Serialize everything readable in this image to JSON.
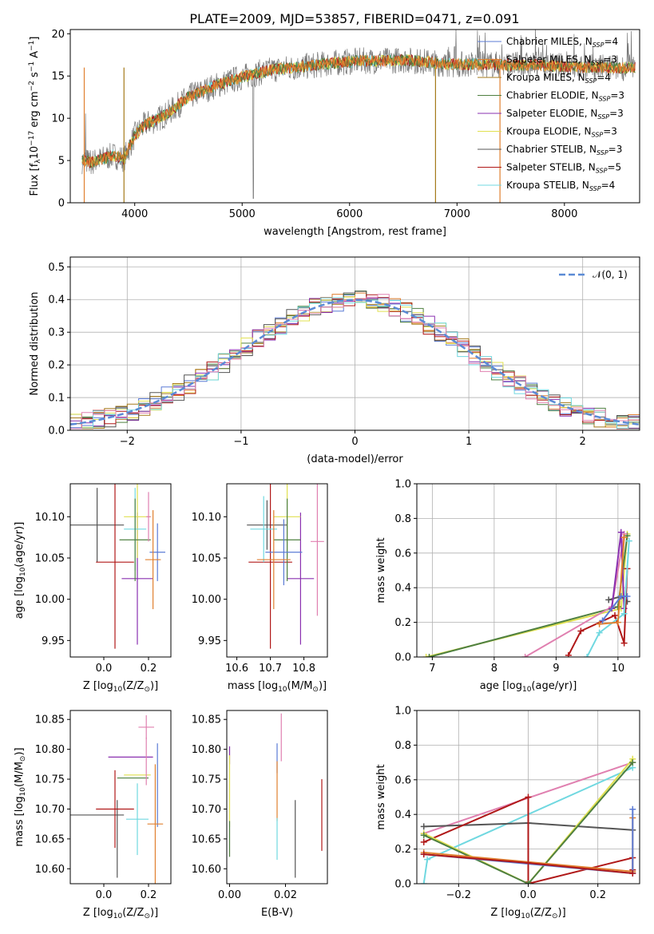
{
  "colors": {
    "Chabrier MILES": "#5b7bd5",
    "Salpeter MILES": "#e08030",
    "Kroupa MILES": "#a57a1a",
    "Chabrier ELODIE": "#4f8040",
    "Salpeter ELODIE": "#8a30b0",
    "Kroupa ELODIE": "#e0e050",
    "Chabrier STELIB": "#555555",
    "Salpeter STELIB": "#b01818",
    "Kroupa STELIB": "#70d8e0",
    "Pink": "#e080b0"
  },
  "chart_data": [
    {
      "id": "spectrum",
      "type": "line",
      "title": "PLATE=2009, MJD=53857, FIBERID=0471, z=0.091",
      "xlabel": "wavelength [Angstrom, rest frame]",
      "ylabel": "Flux [f",
      "ylabel_sub": "λ",
      "ylabel_rest": "10",
      "ylabel_sup": "−17",
      "ylabel_tail": " erg cm",
      "ylabel_sup2": "−2",
      "ylabel_tail2": " s",
      "ylabel_sup3": "−1",
      "ylabel_tail3": " A",
      "ylabel_sup4": "−1",
      "ylabel_end": "]",
      "xlim": [
        3400,
        8700
      ],
      "ylim": [
        0,
        20.5
      ],
      "xticks": [
        "4000",
        "5000",
        "6000",
        "7000",
        "8000"
      ],
      "xtick_values": [
        4000,
        5000,
        6000,
        7000,
        8000
      ],
      "yticks": [
        "0",
        "5",
        "10",
        "15",
        "20"
      ],
      "ytick_values": [
        0,
        5,
        10,
        15,
        20
      ],
      "grid": false,
      "legend_position": "top-right",
      "legend": [
        {
          "pre": "Chabrier MILES, N",
          "sub": "SSP",
          "post": "=4",
          "color": "Chabrier MILES"
        },
        {
          "pre": "Salpeter MILES, N",
          "sub": "SSP",
          "post": "=3",
          "color": "Salpeter MILES"
        },
        {
          "pre": "Kroupa MILES, N",
          "sub": "SSP",
          "post": "=4",
          "color": "Kroupa MILES"
        },
        {
          "pre": "Chabrier ELODIE, N",
          "sub": "SSP",
          "post": "=3",
          "color": "Chabrier ELODIE"
        },
        {
          "pre": "Salpeter ELODIE, N",
          "sub": "SSP",
          "post": "=3",
          "color": "Salpeter ELODIE"
        },
        {
          "pre": "Kroupa ELODIE, N",
          "sub": "SSP",
          "post": "=3",
          "color": "Kroupa ELODIE"
        },
        {
          "pre": "Chabrier STELIB, N",
          "sub": "SSP",
          "post": "=3",
          "color": "Chabrier STELIB"
        },
        {
          "pre": "Salpeter STELIB, N",
          "sub": "SSP",
          "post": "=5",
          "color": "Salpeter STELIB"
        },
        {
          "pre": "Kroupa STELIB, N",
          "sub": "SSP",
          "post": "=4",
          "color": "Kroupa STELIB"
        }
      ],
      "continuum": {
        "x": [
          3500,
          3600,
          3700,
          3800,
          3900,
          4000,
          4100,
          4200,
          4300,
          4400,
          4500,
          4700,
          4900,
          5100,
          5300,
          5500,
          5700,
          5900,
          6100,
          6300,
          6500,
          6700,
          6900,
          7100,
          7300,
          7500,
          7700,
          7900,
          8100,
          8300,
          8500
        ],
        "y": [
          5,
          4.8,
          5.2,
          5.6,
          5.2,
          8,
          9.3,
          9.8,
          10.5,
          11.5,
          12.5,
          13.6,
          14.5,
          15.2,
          15.8,
          16.0,
          16.3,
          16.6,
          16.8,
          16.8,
          16.9,
          16.7,
          16.4,
          16.4,
          16.4,
          16.3,
          16.3,
          16.2,
          16.1,
          16.0,
          16.0
        ]
      }
    },
    {
      "id": "residuals",
      "type": "histogram",
      "xlabel": "(data-model)/error",
      "ylabel": "Normed distribution",
      "xlim": [
        -2.5,
        2.5
      ],
      "ylim": [
        0,
        0.53
      ],
      "xticks": [
        "−2",
        "−1",
        "0",
        "1",
        "2"
      ],
      "xtick_values": [
        -2,
        -1,
        0,
        1,
        2
      ],
      "yticks": [
        "0.0",
        "0.1",
        "0.2",
        "0.3",
        "0.4",
        "0.5"
      ],
      "ytick_values": [
        0,
        0.1,
        0.2,
        0.3,
        0.4,
        0.5
      ],
      "grid": true,
      "legend_position": "top-right",
      "legend_label": "𝒩(0, 1)",
      "bin_edges_start": -2.5,
      "bin_width": 0.1
    },
    {
      "id": "age-vs-Z",
      "type": "errorbar",
      "xlabel_pre": "Z [log",
      "xlabel_sub": "10",
      "xlabel_post": "(Z/Z",
      "xlabel_sub2": "⊙",
      "xlabel_end": ")]",
      "ylabel_pre": "age  [log",
      "ylabel_sub": "10",
      "ylabel_post": "(age/yr)]",
      "xlim": [
        -0.15,
        0.3
      ],
      "ylim": [
        9.93,
        10.14
      ],
      "xticks": [
        "0.0",
        "0.2"
      ],
      "xtick_values": [
        0.0,
        0.2
      ],
      "yticks": [
        "9.95",
        "10.00",
        "10.05",
        "10.10"
      ],
      "ytick_values": [
        9.95,
        10.0,
        10.05,
        10.1
      ],
      "points": [
        {
          "x": -0.03,
          "y": 10.09,
          "xerr": 0.12,
          "yerr": 0.045,
          "c": "Chabrier STELIB"
        },
        {
          "x": 0.05,
          "y": 10.045,
          "xerr": 0.085,
          "yerr": 0.105,
          "c": "Salpeter STELIB"
        },
        {
          "x": 0.15,
          "y": 10.025,
          "xerr": 0.07,
          "yerr": 0.08,
          "c": "Salpeter ELODIE"
        },
        {
          "x": 0.15,
          "y": 10.1,
          "xerr": 0.06,
          "yerr": 0.05,
          "c": "Kroupa ELODIE"
        },
        {
          "x": 0.14,
          "y": 10.085,
          "xerr": 0.05,
          "yerr": 0.05,
          "c": "Kroupa STELIB"
        },
        {
          "x": 0.14,
          "y": 10.072,
          "xerr": 0.07,
          "yerr": 0.05,
          "c": "Chabrier ELODIE"
        },
        {
          "x": 0.24,
          "y": 10.057,
          "xerr": 0.035,
          "yerr": 0.035,
          "c": "Chabrier MILES"
        },
        {
          "x": 0.22,
          "y": 10.048,
          "xerr": 0.035,
          "yerr": 0.06,
          "c": "Salpeter MILES"
        },
        {
          "x": 0.2,
          "y": 10.1,
          "xerr": 0.01,
          "yerr": 0.03,
          "c": "Pink"
        }
      ]
    },
    {
      "id": "age-vs-mass",
      "type": "errorbar",
      "xlabel_pre": "mass [log",
      "xlabel_sub": "10",
      "xlabel_post": "(M/M",
      "xlabel_sub2": "⊙",
      "xlabel_end": ")]",
      "xlim": [
        10.57,
        10.87
      ],
      "ylim": [
        9.93,
        10.14
      ],
      "xticks": [
        "10.6",
        "10.7",
        "10.8"
      ],
      "xtick_values": [
        10.6,
        10.7,
        10.8
      ],
      "yticks": [
        "9.95",
        "10.00",
        "10.05",
        "10.10"
      ],
      "ytick_values": [
        9.95,
        10.0,
        10.05,
        10.1
      ],
      "points": [
        {
          "x": 10.69,
          "y": 10.09,
          "xerr": 0.06,
          "yerr": 0.03,
          "c": "Chabrier STELIB"
        },
        {
          "x": 10.7,
          "y": 10.045,
          "xerr": 0.065,
          "yerr": 0.105,
          "c": "Salpeter STELIB"
        },
        {
          "x": 10.79,
          "y": 10.025,
          "xerr": 0.04,
          "yerr": 0.08,
          "c": "Salpeter ELODIE"
        },
        {
          "x": 10.75,
          "y": 10.1,
          "xerr": 0.04,
          "yerr": 0.05,
          "c": "Kroupa ELODIE"
        },
        {
          "x": 10.68,
          "y": 10.085,
          "xerr": 0.04,
          "yerr": 0.04,
          "c": "Kroupa STELIB"
        },
        {
          "x": 10.75,
          "y": 10.072,
          "xerr": 0.04,
          "yerr": 0.05,
          "c": "Chabrier ELODIE"
        },
        {
          "x": 10.74,
          "y": 10.057,
          "xerr": 0.055,
          "yerr": 0.04,
          "c": "Chabrier MILES"
        },
        {
          "x": 10.71,
          "y": 10.048,
          "xerr": 0.05,
          "yerr": 0.06,
          "c": "Salpeter MILES"
        },
        {
          "x": 10.84,
          "y": 10.07,
          "xerr": 0.02,
          "yerr": 0.09,
          "c": "Pink"
        }
      ]
    },
    {
      "id": "mass-weight-vs-age",
      "type": "line",
      "xlabel_pre": "age  [log",
      "xlabel_sub": "10",
      "xlabel_post": "(age/yr)]",
      "ylabel": "mass weight",
      "xlim": [
        6.75,
        10.35
      ],
      "ylim": [
        0,
        1.0
      ],
      "xticks": [
        "7",
        "8",
        "9",
        "10"
      ],
      "xtick_values": [
        7,
        8,
        9,
        10
      ],
      "yticks": [
        "0.0",
        "0.2",
        "0.4",
        "0.6",
        "0.8",
        "1.0"
      ],
      "ytick_values": [
        0,
        0.2,
        0.4,
        0.6,
        0.8,
        1.0
      ],
      "grid": true,
      "series": [
        {
          "c": "Kroupa ELODIE",
          "x": [
            6.9,
            10.05,
            10.15
          ],
          "y": [
            0.0,
            0.28,
            0.71
          ]
        },
        {
          "c": "Chabrier ELODIE",
          "x": [
            6.95,
            10.0,
            10.15
          ],
          "y": [
            0.0,
            0.29,
            0.7
          ]
        },
        {
          "c": "Pink",
          "x": [
            8.5,
            9.9,
            10.1
          ],
          "y": [
            0.0,
            0.29,
            0.71
          ]
        },
        {
          "c": "Chabrier STELIB",
          "x": [
            9.85,
            10.05,
            10.15
          ],
          "y": [
            0.33,
            0.35,
            0.32
          ]
        },
        {
          "c": "Salpeter ELODIE",
          "x": [
            9.9,
            10.05,
            10.1
          ],
          "y": [
            0.28,
            0.72,
            0.28
          ]
        },
        {
          "c": "Salpeter STELIB",
          "x": [
            9.2,
            9.4,
            9.95,
            10.1,
            10.15
          ],
          "y": [
            0.01,
            0.15,
            0.24,
            0.08,
            0.51
          ]
        },
        {
          "c": "Kroupa STELIB",
          "x": [
            9.5,
            9.7,
            10.1,
            10.18
          ],
          "y": [
            0.0,
            0.14,
            0.25,
            0.67
          ]
        },
        {
          "c": "Salpeter MILES",
          "x": [
            9.7,
            10.0,
            10.1
          ],
          "y": [
            0.19,
            0.2,
            0.69
          ]
        },
        {
          "c": "Chabrier MILES",
          "x": [
            9.75,
            10.05,
            10.15
          ],
          "y": [
            0.21,
            0.35,
            0.35
          ]
        }
      ]
    },
    {
      "id": "mass-vs-Z",
      "type": "errorbar",
      "xlabel_pre": "Z [log",
      "xlabel_sub": "10",
      "xlabel_post": "(Z/Z",
      "xlabel_sub2": "⊙",
      "xlabel_end": ")]",
      "ylabel_pre": "mass [log",
      "ylabel_sub": "10",
      "ylabel_post": "(M/M",
      "ylabel_sub2": "⊙",
      "ylabel_end": ")]",
      "xlim": [
        -0.15,
        0.3
      ],
      "ylim": [
        10.575,
        10.865
      ],
      "xticks": [
        "0.0",
        "0.2"
      ],
      "xtick_values": [
        0.0,
        0.2
      ],
      "yticks": [
        "10.60",
        "10.65",
        "10.70",
        "10.75",
        "10.80",
        "10.85"
      ],
      "ytick_values": [
        10.6,
        10.65,
        10.7,
        10.75,
        10.8,
        10.85
      ],
      "points": [
        {
          "x": -0.03,
          "y": 10.69,
          "xerr": 0.12,
          "yerr": 0.0,
          "c": "Chabrier STELIB"
        },
        {
          "x": 0.06,
          "y": 10.65,
          "xerr": 0.0,
          "yerr": 0.065,
          "c": "Chabrier STELIB"
        },
        {
          "x": 0.05,
          "y": 10.7,
          "xerr": 0.085,
          "yerr": 0.065,
          "c": "Salpeter STELIB"
        },
        {
          "x": 0.12,
          "y": 10.787,
          "xerr": 0.1,
          "yerr": 0.0,
          "c": "Salpeter ELODIE"
        },
        {
          "x": 0.15,
          "y": 10.757,
          "xerr": 0.06,
          "yerr": 0.0,
          "c": "Kroupa ELODIE"
        },
        {
          "x": 0.13,
          "y": 10.752,
          "xerr": 0.07,
          "yerr": 0.0,
          "c": "Chabrier ELODIE"
        },
        {
          "x": 0.15,
          "y": 10.683,
          "xerr": 0.05,
          "yerr": 0.06,
          "c": "Kroupa STELIB"
        },
        {
          "x": 0.24,
          "y": 10.74,
          "xerr": 0.0,
          "yerr": 0.07,
          "c": "Chabrier MILES"
        },
        {
          "x": 0.23,
          "y": 10.675,
          "xerr": 0.035,
          "yerr": 0.1,
          "c": "Salpeter MILES"
        },
        {
          "x": 0.19,
          "y": 10.837,
          "xerr": 0.035,
          "yerr": 0.02,
          "c": "Pink"
        },
        {
          "x": 0.19,
          "y": 10.78,
          "xerr": 0.0,
          "yerr": 0.04,
          "c": "Pink"
        }
      ]
    },
    {
      "id": "mass-vs-ebv",
      "type": "errorbar",
      "xlabel": "E(B-V)",
      "xlim": [
        -0.001,
        0.035
      ],
      "ylim": [
        10.575,
        10.865
      ],
      "xticks": [
        "0.00",
        "0.02"
      ],
      "xtick_values": [
        0.0,
        0.02
      ],
      "yticks": [
        "10.60",
        "10.65",
        "10.70",
        "10.75",
        "10.80",
        "10.85"
      ],
      "ytick_values": [
        10.6,
        10.65,
        10.7,
        10.75,
        10.8,
        10.85
      ],
      "points": [
        {
          "x": 0.0,
          "y": 10.79,
          "xerr": 0,
          "yerr": 0.015,
          "c": "Salpeter ELODIE"
        },
        {
          "x": 0.0,
          "y": 10.73,
          "xerr": 0,
          "yerr": 0.06,
          "c": "Kroupa ELODIE"
        },
        {
          "x": 0.0,
          "y": 10.65,
          "xerr": 0,
          "yerr": 0.03,
          "c": "Chabrier ELODIE"
        },
        {
          "x": 0.017,
          "y": 10.785,
          "xerr": 0,
          "yerr": 0.025,
          "c": "Chabrier MILES"
        },
        {
          "x": 0.017,
          "y": 10.73,
          "xerr": 0,
          "yerr": 0.05,
          "c": "Salpeter MILES"
        },
        {
          "x": 0.017,
          "y": 10.65,
          "xerr": 0,
          "yerr": 0.035,
          "c": "Kroupa STELIB"
        },
        {
          "x": 0.0185,
          "y": 10.82,
          "xerr": 0,
          "yerr": 0.04,
          "c": "Pink"
        },
        {
          "x": 0.0235,
          "y": 10.65,
          "xerr": 0,
          "yerr": 0.065,
          "c": "Chabrier STELIB"
        },
        {
          "x": 0.033,
          "y": 10.69,
          "xerr": 0,
          "yerr": 0.06,
          "c": "Salpeter STELIB"
        }
      ]
    },
    {
      "id": "mass-weight-vs-Z",
      "type": "line",
      "xlabel_pre": "Z [log",
      "xlabel_sub": "10",
      "xlabel_post": "(Z/Z",
      "xlabel_sub2": "⊙",
      "xlabel_end": ")]",
      "ylabel": "mass weight",
      "xlim": [
        -0.32,
        0.32
      ],
      "ylim": [
        0,
        1.0
      ],
      "xticks": [
        "−0.2",
        "0.0",
        "0.2"
      ],
      "xtick_values": [
        -0.2,
        0.0,
        0.2
      ],
      "yticks": [
        "0.0",
        "0.2",
        "0.4",
        "0.6",
        "0.8",
        "1.0"
      ],
      "ytick_values": [
        0,
        0.2,
        0.4,
        0.6,
        0.8,
        1.0
      ],
      "grid": true,
      "series": [
        {
          "c": "Kroupa STELIB",
          "x": [
            -0.3,
            -0.29,
            0.3
          ],
          "y": [
            0.0,
            0.14,
            0.67
          ]
        },
        {
          "c": "Pink",
          "x": [
            -0.3,
            0.3
          ],
          "y": [
            0.29,
            0.7
          ]
        },
        {
          "c": "Chabrier STELIB",
          "x": [
            -0.3,
            0.0,
            0.3
          ],
          "y": [
            0.33,
            0.35,
            0.31
          ]
        },
        {
          "c": "Salpeter STELIB",
          "x": [
            -0.3,
            0.0,
            0.0,
            0.0,
            0.3,
            0.3
          ],
          "y": [
            0.24,
            0.5,
            0.01,
            0.0,
            0.15,
            0.08
          ]
        },
        {
          "c": "Kroupa ELODIE",
          "x": [
            -0.3,
            0.0,
            0.3
          ],
          "y": [
            0.29,
            0.0,
            0.72
          ]
        },
        {
          "c": "Chabrier ELODIE",
          "x": [
            -0.3,
            0.0,
            0.3
          ],
          "y": [
            0.28,
            0.0,
            0.7
          ]
        },
        {
          "c": "Salpeter MILES",
          "x": [
            -0.3,
            0.3,
            0.3
          ],
          "y": [
            0.18,
            0.07,
            0.38
          ]
        },
        {
          "c": "Chabrier MILES",
          "x": [
            -0.3,
            0.3,
            0.3
          ],
          "y": [
            0.17,
            0.06,
            0.43
          ]
        },
        {
          "c": "Salpeter STELIB",
          "x": [
            -0.3,
            0.0,
            0.3
          ],
          "y": [
            0.17,
            0.12,
            0.06
          ]
        }
      ]
    }
  ]
}
